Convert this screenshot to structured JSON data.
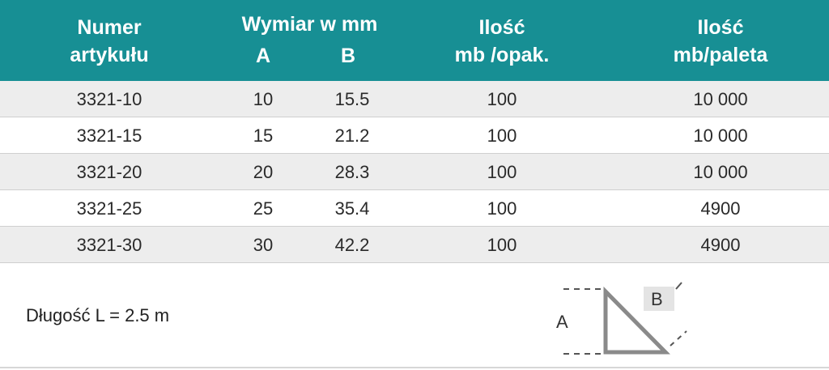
{
  "header": {
    "numer": [
      "Numer",
      "artykułu"
    ],
    "wymiar": "Wymiar w mm",
    "col_a": "A",
    "col_b": "B",
    "ilosc_opak": [
      "Ilość",
      "mb /opak."
    ],
    "ilosc_paleta": [
      "Ilość",
      "mb/paleta"
    ]
  },
  "rows": [
    {
      "numer": "3321-10",
      "a": "10",
      "b": "15.5",
      "opak": "100",
      "paleta": "10 000"
    },
    {
      "numer": "3321-15",
      "a": "15",
      "b": "21.2",
      "opak": "100",
      "paleta": "10 000"
    },
    {
      "numer": "3321-20",
      "a": "20",
      "b": "28.3",
      "opak": "100",
      "paleta": "10 000"
    },
    {
      "numer": "3321-25",
      "a": "25",
      "b": "35.4",
      "opak": "100",
      "paleta": "4900"
    },
    {
      "numer": "3321-30",
      "a": "30",
      "b": "42.2",
      "opak": "100",
      "paleta": "4900"
    }
  ],
  "footer": {
    "length": "Długość  L = 2.5 m",
    "diagram_a": "A",
    "diagram_b": "B"
  },
  "colors": {
    "header_bg": "#178f94",
    "row_alt": "#ededed"
  }
}
